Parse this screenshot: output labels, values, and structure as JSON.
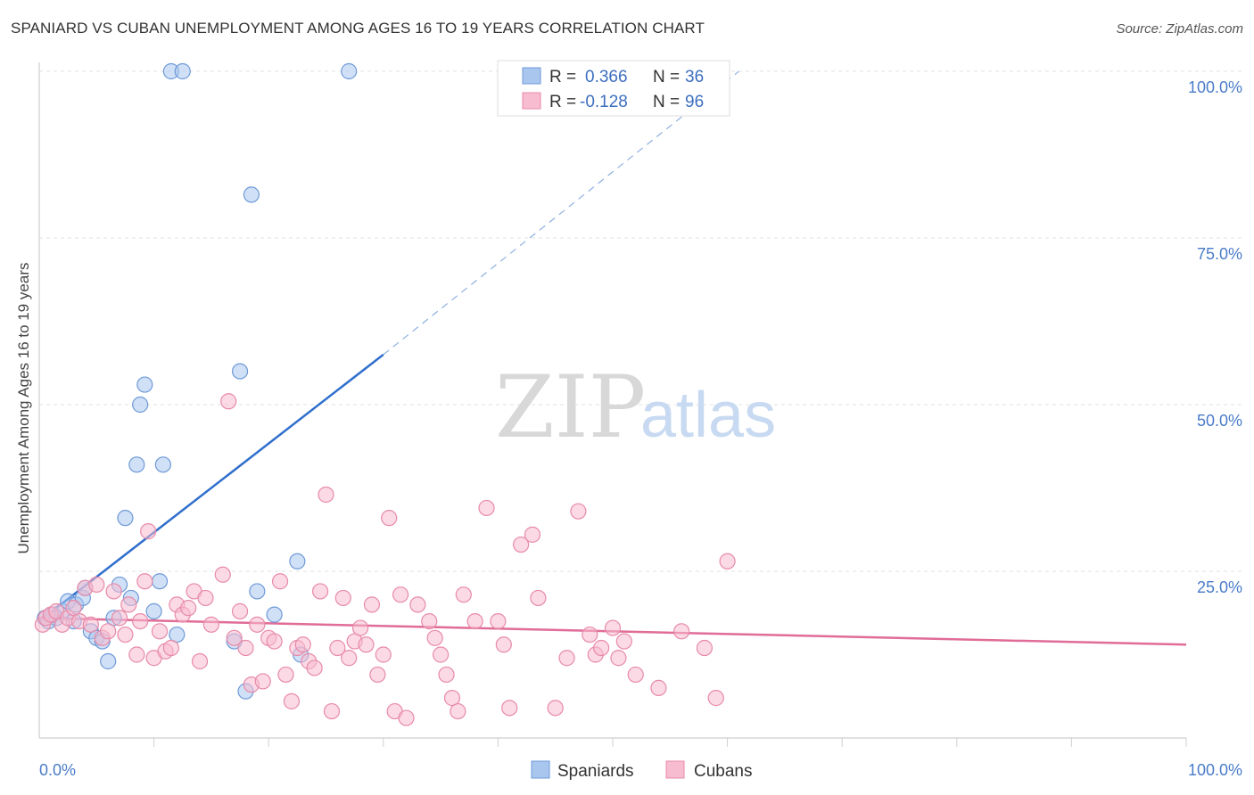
{
  "title": "SPANIARD VS CUBAN UNEMPLOYMENT AMONG AGES 16 TO 19 YEARS CORRELATION CHART",
  "source": "Source: ZipAtlas.com",
  "watermark": {
    "zip": "ZIP",
    "atlas": "atlas"
  },
  "legend": {
    "r_label": "R =",
    "n_label": "N =",
    "rows": [
      {
        "r": "0.366",
        "n": "36",
        "color": "#a9c6ef",
        "stroke": "#6f9ad8"
      },
      {
        "r": "-0.128",
        "n": "96",
        "color": "#f7bcd0",
        "stroke": "#e88aa8"
      }
    ]
  },
  "bottom_legend": [
    {
      "label": "Spaniards",
      "color": "#a9c6ef",
      "stroke": "#6f9ad8"
    },
    {
      "label": "Cubans",
      "color": "#f7bcd0",
      "stroke": "#e88aa8"
    }
  ],
  "chart_data": {
    "type": "scatter",
    "title": "SPANIARD VS CUBAN UNEMPLOYMENT AMONG AGES 16 TO 19 YEARS CORRELATION CHART",
    "xlabel": "",
    "ylabel": "Unemployment Among Ages 16 to 19 years",
    "xlim": [
      0,
      100
    ],
    "ylim": [
      0,
      100
    ],
    "x_tick_labels": [
      "0.0%",
      "100.0%"
    ],
    "y_tick_labels": [
      "25.0%",
      "50.0%",
      "75.0%",
      "100.0%"
    ],
    "y_ticks": [
      25,
      50,
      75,
      100
    ],
    "grid": true,
    "series": [
      {
        "name": "Spaniards",
        "color": "#6f9ad8",
        "fill": "#a9c6ef",
        "trend_color": "#2f6fcc",
        "trend": {
          "x0": 0,
          "y0": 17.5,
          "x1": 30,
          "y1": 57.5,
          "x_dash_end": 61,
          "y_dash_end": 100
        },
        "points": [
          [
            0.5,
            18
          ],
          [
            0.8,
            17.5
          ],
          [
            1.2,
            18.5
          ],
          [
            1.5,
            18
          ],
          [
            2,
            19
          ],
          [
            2.5,
            20.5
          ],
          [
            3,
            17.5
          ],
          [
            3.2,
            20
          ],
          [
            3.8,
            21
          ],
          [
            4,
            22.5
          ],
          [
            4.5,
            16
          ],
          [
            5,
            15
          ],
          [
            5.5,
            14.5
          ],
          [
            6,
            11.5
          ],
          [
            6.5,
            18
          ],
          [
            7,
            23
          ],
          [
            7.5,
            33
          ],
          [
            8,
            21
          ],
          [
            8.5,
            41
          ],
          [
            8.8,
            50
          ],
          [
            9.2,
            53
          ],
          [
            10,
            19
          ],
          [
            10.5,
            23.5
          ],
          [
            10.8,
            41
          ],
          [
            11.5,
            100
          ],
          [
            12,
            15.5
          ],
          [
            12.5,
            100
          ],
          [
            17,
            14.5
          ],
          [
            17.5,
            55
          ],
          [
            18,
            7
          ],
          [
            18.5,
            81.5
          ],
          [
            19,
            22
          ],
          [
            20.5,
            18.5
          ],
          [
            22.5,
            26.5
          ],
          [
            22.8,
            12.5
          ],
          [
            27,
            100
          ]
        ]
      },
      {
        "name": "Cubans",
        "color": "#e88aa8",
        "fill": "#f7bcd0",
        "trend_color": "#e06c97",
        "trend": {
          "x0": 0,
          "y0": 18,
          "x1": 100,
          "y1": 14
        },
        "points": [
          [
            0.3,
            17
          ],
          [
            0.6,
            18
          ],
          [
            1,
            18.5
          ],
          [
            1.5,
            19
          ],
          [
            2,
            17
          ],
          [
            2.5,
            18
          ],
          [
            3,
            19.5
          ],
          [
            3.5,
            17.5
          ],
          [
            4,
            22.5
          ],
          [
            4.5,
            17
          ],
          [
            5,
            23
          ],
          [
            5.5,
            15
          ],
          [
            6,
            16
          ],
          [
            6.5,
            22
          ],
          [
            7,
            18
          ],
          [
            7.5,
            15.5
          ],
          [
            7.8,
            20
          ],
          [
            8.5,
            12.5
          ],
          [
            8.8,
            17.5
          ],
          [
            9.2,
            23.5
          ],
          [
            9.5,
            31
          ],
          [
            10,
            12
          ],
          [
            10.5,
            16
          ],
          [
            11,
            13
          ],
          [
            11.5,
            13.5
          ],
          [
            12,
            20
          ],
          [
            12.5,
            18.5
          ],
          [
            13,
            19.5
          ],
          [
            13.5,
            22
          ],
          [
            14,
            11.5
          ],
          [
            14.5,
            21
          ],
          [
            15,
            17
          ],
          [
            16,
            24.5
          ],
          [
            16.5,
            50.5
          ],
          [
            17,
            15
          ],
          [
            17.5,
            19
          ],
          [
            18,
            13.5
          ],
          [
            18.5,
            8
          ],
          [
            19,
            17
          ],
          [
            19.5,
            8.5
          ],
          [
            20,
            15
          ],
          [
            20.5,
            14.5
          ],
          [
            21,
            23.5
          ],
          [
            21.5,
            9.5
          ],
          [
            22,
            5.5
          ],
          [
            22.5,
            13.5
          ],
          [
            23,
            14
          ],
          [
            23.5,
            11.5
          ],
          [
            24,
            10.5
          ],
          [
            24.5,
            22
          ],
          [
            25,
            36.5
          ],
          [
            25.5,
            4
          ],
          [
            26,
            13.5
          ],
          [
            26.5,
            21
          ],
          [
            27,
            12
          ],
          [
            27.5,
            14.5
          ],
          [
            28,
            16.5
          ],
          [
            28.5,
            14
          ],
          [
            29,
            20
          ],
          [
            29.5,
            9.5
          ],
          [
            30,
            12.5
          ],
          [
            30.5,
            33
          ],
          [
            31,
            4
          ],
          [
            31.5,
            21.5
          ],
          [
            32,
            3
          ],
          [
            33,
            20
          ],
          [
            34,
            17.5
          ],
          [
            34.5,
            15
          ],
          [
            35,
            12.5
          ],
          [
            35.5,
            9.5
          ],
          [
            36,
            6
          ],
          [
            36.5,
            4
          ],
          [
            37,
            21.5
          ],
          [
            38,
            17.5
          ],
          [
            39,
            34.5
          ],
          [
            40,
            17.5
          ],
          [
            40.5,
            14
          ],
          [
            41,
            4.5
          ],
          [
            42,
            29
          ],
          [
            43,
            30.5
          ],
          [
            43.5,
            21
          ],
          [
            45,
            4.5
          ],
          [
            46,
            12
          ],
          [
            47,
            34
          ],
          [
            48,
            15.5
          ],
          [
            48.5,
            12.5
          ],
          [
            49,
            13.5
          ],
          [
            50,
            16.5
          ],
          [
            50.5,
            12
          ],
          [
            51,
            14.5
          ],
          [
            52,
            9.5
          ],
          [
            54,
            7.5
          ],
          [
            56,
            16
          ],
          [
            58,
            13.5
          ],
          [
            59,
            6
          ],
          [
            60,
            26.5
          ]
        ]
      }
    ]
  }
}
